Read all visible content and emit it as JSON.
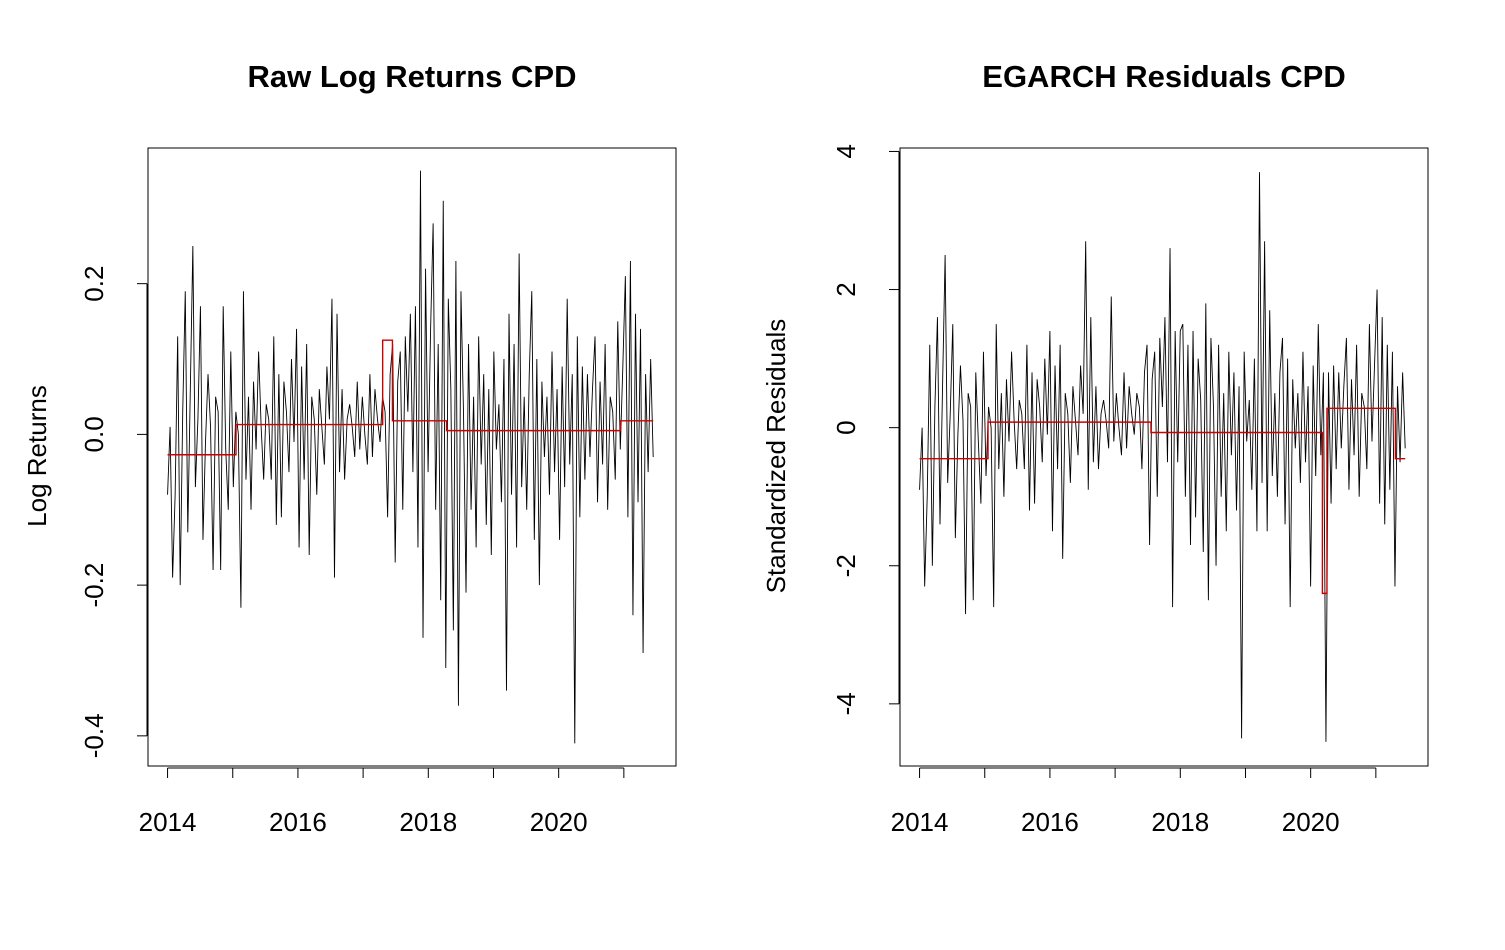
{
  "colors": {
    "series": "#000000",
    "segments": "#cc0000",
    "background": "#ffffff"
  },
  "chart_data": [
    {
      "type": "line",
      "title": "Raw Log Returns CPD",
      "xlabel": "",
      "ylabel": "Log Returns",
      "xlim": [
        2013.7,
        2021.8
      ],
      "ylim": [
        -0.44,
        0.38
      ],
      "x_ticks": [
        2014,
        2015,
        2016,
        2017,
        2018,
        2019,
        2020,
        2021
      ],
      "x_tick_labels": [
        "2014",
        "",
        "2016",
        "",
        "2018",
        "",
        "2020",
        ""
      ],
      "y_ticks": [
        -0.4,
        -0.2,
        0.0,
        0.2
      ],
      "y_tick_labels": [
        "-0.4",
        "-0.2",
        "0.0",
        "0.2"
      ],
      "series": [
        {
          "x_start": 2014.0,
          "x_end": 2021.45,
          "values": [
            -0.08,
            0.01,
            -0.19,
            -0.08,
            0.13,
            -0.2,
            0.03,
            0.19,
            -0.13,
            0.06,
            0.25,
            -0.07,
            0.02,
            0.17,
            -0.14,
            -0.01,
            0.08,
            0.01,
            -0.18,
            0.05,
            0.03,
            -0.18,
            0.17,
            -0.02,
            -0.1,
            0.11,
            -0.07,
            0.03,
            0.0,
            -0.23,
            0.19,
            -0.06,
            0.05,
            -0.1,
            0.07,
            -0.02,
            0.11,
            0.01,
            -0.06,
            0.04,
            0.02,
            -0.06,
            0.13,
            -0.12,
            0.08,
            -0.11,
            0.07,
            0.03,
            -0.05,
            0.1,
            -0.01,
            0.14,
            -0.15,
            0.09,
            -0.06,
            0.12,
            -0.16,
            0.05,
            0.02,
            -0.08,
            0.06,
            0.01,
            -0.04,
            0.09,
            0.02,
            0.18,
            -0.19,
            0.16,
            -0.05,
            0.06,
            -0.06,
            0.02,
            0.04,
            0.01,
            -0.03,
            0.07,
            -0.02,
            0.05,
            0.0,
            -0.04,
            0.08,
            -0.03,
            0.06,
            0.02,
            -0.01,
            0.05,
            0.03,
            -0.11,
            0.08,
            0.12,
            -0.17,
            0.07,
            0.11,
            -0.1,
            0.13,
            0.03,
            0.16,
            -0.05,
            0.17,
            -0.15,
            0.35,
            -0.27,
            0.22,
            -0.05,
            0.14,
            0.28,
            -0.1,
            0.12,
            -0.22,
            0.31,
            -0.31,
            0.18,
            0.06,
            -0.26,
            0.23,
            -0.36,
            0.19,
            0.03,
            -0.21,
            0.12,
            -0.1,
            0.05,
            -0.15,
            0.13,
            -0.04,
            0.08,
            -0.12,
            0.06,
            -0.16,
            0.11,
            -0.02,
            0.04,
            -0.09,
            0.1,
            -0.34,
            0.16,
            -0.08,
            0.12,
            -0.15,
            0.24,
            -0.07,
            0.05,
            -0.1,
            0.08,
            0.19,
            -0.14,
            0.1,
            -0.2,
            0.07,
            -0.03,
            0.05,
            -0.08,
            0.11,
            -0.05,
            0.06,
            -0.14,
            0.09,
            -0.07,
            0.18,
            -0.04,
            0.08,
            -0.41,
            0.13,
            -0.11,
            0.09,
            -0.06,
            0.08,
            -0.03,
            0.06,
            0.13,
            -0.09,
            0.07,
            -0.04,
            0.12,
            -0.1,
            0.05,
            0.03,
            -0.06,
            0.15,
            -0.02,
            0.09,
            0.21,
            -0.11,
            0.23,
            -0.24,
            0.16,
            -0.09,
            0.14,
            -0.29,
            0.08,
            -0.05,
            0.1,
            -0.03
          ]
        }
      ],
      "segments": [
        {
          "x_start": 2014.0,
          "x_end": 2015.05,
          "value": -0.027
        },
        {
          "x_start": 2015.05,
          "x_end": 2017.3,
          "value": 0.013
        },
        {
          "x_start": 2017.3,
          "x_end": 2017.45,
          "value": 0.125
        },
        {
          "x_start": 2017.45,
          "x_end": 2018.28,
          "value": 0.018
        },
        {
          "x_start": 2018.28,
          "x_end": 2020.95,
          "value": 0.005
        },
        {
          "x_start": 2020.95,
          "x_end": 2021.45,
          "value": 0.018
        }
      ]
    },
    {
      "type": "line",
      "title": "EGARCH Residuals CPD",
      "xlabel": "",
      "ylabel": "Standardized Residuals",
      "xlim": [
        2013.7,
        2021.8
      ],
      "ylim": [
        -4.9,
        4.05
      ],
      "x_ticks": [
        2014,
        2015,
        2016,
        2017,
        2018,
        2019,
        2020,
        2021
      ],
      "x_tick_labels": [
        "2014",
        "",
        "2016",
        "",
        "2018",
        "",
        "2020",
        ""
      ],
      "y_ticks": [
        -4,
        -2,
        0,
        2,
        4
      ],
      "y_tick_labels": [
        "-4",
        "-2",
        "0",
        "2",
        "4"
      ],
      "series": [
        {
          "x_start": 2014.0,
          "x_end": 2021.45,
          "values": [
            -0.9,
            0.0,
            -2.3,
            -1.0,
            1.2,
            -2.0,
            0.3,
            1.6,
            -1.4,
            0.6,
            2.5,
            -0.8,
            0.2,
            1.5,
            -1.6,
            -0.1,
            0.9,
            0.1,
            -2.7,
            0.5,
            0.3,
            -2.5,
            0.8,
            -0.2,
            -1.1,
            1.1,
            -0.7,
            0.3,
            0.0,
            -2.6,
            1.5,
            -0.6,
            0.5,
            -1.0,
            0.7,
            -0.2,
            1.1,
            0.1,
            -0.6,
            0.4,
            0.2,
            -0.6,
            1.2,
            -1.2,
            0.8,
            -1.1,
            0.7,
            0.3,
            -0.5,
            1.0,
            -0.1,
            1.4,
            -1.5,
            0.9,
            -0.6,
            1.2,
            -1.9,
            0.5,
            0.2,
            -0.8,
            0.6,
            0.1,
            -0.4,
            0.9,
            0.2,
            2.7,
            -0.9,
            1.6,
            -0.5,
            0.6,
            -0.6,
            0.2,
            0.4,
            0.1,
            -0.3,
            1.9,
            -0.2,
            0.5,
            0.0,
            -0.4,
            0.8,
            -0.3,
            0.6,
            0.2,
            -0.1,
            0.5,
            0.3,
            -0.6,
            0.8,
            1.2,
            -1.7,
            0.7,
            1.1,
            -1.0,
            1.3,
            0.3,
            1.6,
            -0.5,
            2.6,
            -2.6,
            1.4,
            -0.5,
            1.4,
            1.5,
            -1.0,
            1.2,
            -1.7,
            1.4,
            -1.3,
            1.0,
            0.4,
            -1.8,
            1.8,
            -2.5,
            1.3,
            0.3,
            -2.0,
            1.2,
            -1.0,
            0.5,
            -1.5,
            1.1,
            -0.4,
            0.8,
            -1.2,
            0.6,
            -4.5,
            1.1,
            -0.2,
            0.4,
            -0.9,
            1.0,
            -1.5,
            3.7,
            -0.8,
            2.7,
            -1.5,
            1.7,
            -0.7,
            0.5,
            -1.0,
            0.8,
            1.3,
            -1.4,
            1.0,
            -2.6,
            0.7,
            -0.3,
            0.5,
            -0.8,
            1.1,
            -0.5,
            0.6,
            -2.3,
            0.9,
            -0.7,
            1.5,
            -0.4,
            0.8,
            -4.55,
            0.8,
            -1.1,
            0.9,
            -0.6,
            0.8,
            -0.3,
            0.6,
            1.3,
            -0.9,
            0.7,
            -0.4,
            1.2,
            -1.0,
            0.5,
            0.3,
            -0.6,
            1.5,
            -0.2,
            0.9,
            2.0,
            -1.1,
            1.6,
            -1.4,
            1.2,
            -0.9,
            1.1,
            -2.3,
            0.6,
            -0.5,
            0.8,
            -0.3
          ]
        }
      ],
      "segments": [
        {
          "x_start": 2014.0,
          "x_end": 2015.05,
          "value": -0.45
        },
        {
          "x_start": 2015.05,
          "x_end": 2017.55,
          "value": 0.08
        },
        {
          "x_start": 2017.55,
          "x_end": 2020.18,
          "value": -0.07
        },
        {
          "x_start": 2020.18,
          "x_end": 2020.25,
          "value": -2.4
        },
        {
          "x_start": 2020.25,
          "x_end": 2021.3,
          "value": 0.28
        },
        {
          "x_start": 2021.3,
          "x_end": 2021.45,
          "value": -0.45
        }
      ]
    }
  ]
}
